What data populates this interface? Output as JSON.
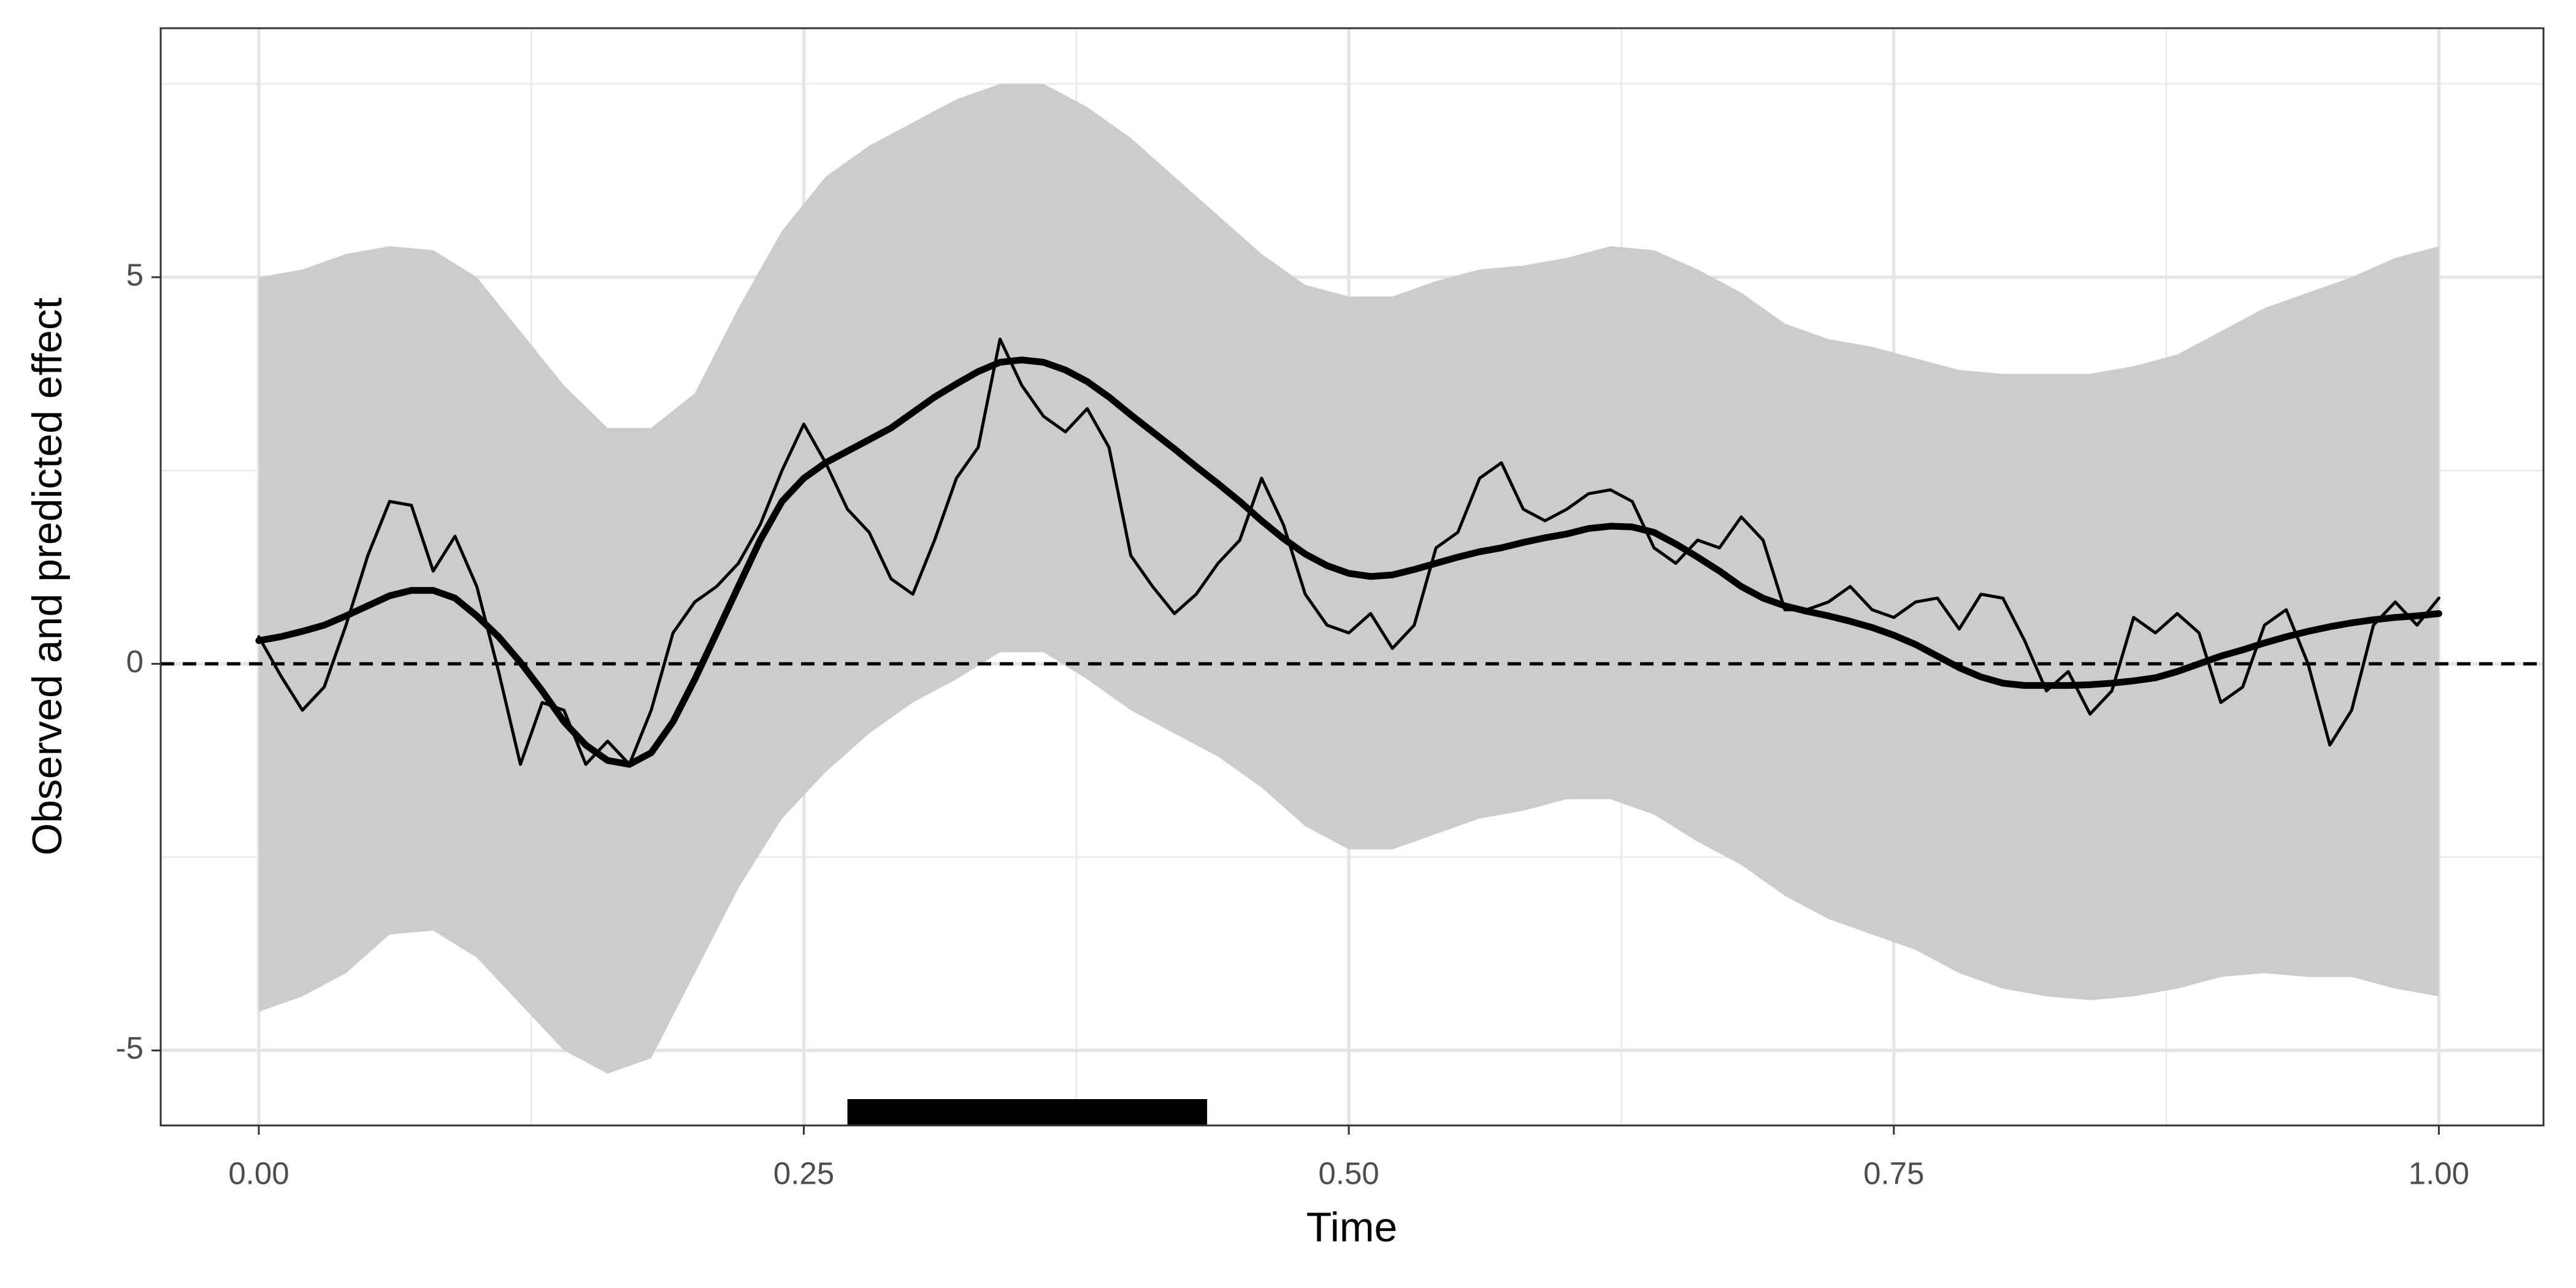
{
  "chart_data": {
    "type": "line",
    "xlabel": "Time",
    "ylabel": "Observed and predicted effect",
    "xlim": [
      -0.045,
      1.048
    ],
    "ylim": [
      -5.97,
      8.22
    ],
    "xticks": [
      {
        "value": 0,
        "label": "0.00"
      },
      {
        "value": 0.25,
        "label": "0.25"
      },
      {
        "value": 0.5,
        "label": "0.50"
      },
      {
        "value": 0.75,
        "label": "0.75"
      },
      {
        "value": 1,
        "label": "1.00"
      }
    ],
    "yticks": [
      -5,
      0,
      5
    ],
    "xminor": [
      0.125,
      0.375,
      0.625,
      0.875
    ],
    "yminor": [
      -2.5,
      2.5,
      7.5
    ],
    "grid": true,
    "reference_line": 0,
    "significant_region": [
      0.27,
      0.435
    ],
    "band": {
      "color": "#cccccc",
      "x": [
        0,
        0.02,
        0.04,
        0.06,
        0.08,
        0.1,
        0.12,
        0.14,
        0.16,
        0.18,
        0.2,
        0.22,
        0.24,
        0.26,
        0.28,
        0.3,
        0.32,
        0.34,
        0.36,
        0.38,
        0.4,
        0.42,
        0.44,
        0.46,
        0.48,
        0.5,
        0.52,
        0.54,
        0.56,
        0.58,
        0.6,
        0.62,
        0.64,
        0.66,
        0.68,
        0.7,
        0.72,
        0.74,
        0.76,
        0.78,
        0.8,
        0.82,
        0.84,
        0.86,
        0.88,
        0.9,
        0.92,
        0.94,
        0.96,
        0.98,
        1
      ],
      "upper": [
        5.0,
        5.1,
        5.3,
        5.4,
        5.35,
        5.0,
        4.3,
        3.6,
        3.05,
        3.05,
        3.5,
        4.6,
        5.6,
        6.3,
        6.7,
        7.0,
        7.3,
        7.5,
        7.5,
        7.2,
        6.8,
        6.3,
        5.8,
        5.3,
        4.9,
        4.75,
        4.75,
        4.95,
        5.1,
        5.15,
        5.25,
        5.4,
        5.35,
        5.1,
        4.8,
        4.4,
        4.2,
        4.1,
        3.95,
        3.8,
        3.75,
        3.75,
        3.75,
        3.85,
        4.0,
        4.3,
        4.6,
        4.8,
        5.0,
        5.25,
        5.4
      ],
      "lower": [
        -4.5,
        -4.3,
        -4.0,
        -3.5,
        -3.45,
        -3.8,
        -4.4,
        -5.0,
        -5.3,
        -5.1,
        -4.0,
        -2.9,
        -2.0,
        -1.4,
        -0.9,
        -0.5,
        -0.2,
        0.15,
        0.15,
        -0.2,
        -0.6,
        -0.9,
        -1.2,
        -1.6,
        -2.1,
        -2.4,
        -2.4,
        -2.2,
        -2.0,
        -1.9,
        -1.75,
        -1.75,
        -1.95,
        -2.3,
        -2.6,
        -3.0,
        -3.3,
        -3.5,
        -3.7,
        -4.0,
        -4.2,
        -4.3,
        -4.35,
        -4.3,
        -4.2,
        -4.05,
        -4.0,
        -4.05,
        -4.05,
        -4.2,
        -4.3
      ]
    },
    "x": [
      0,
      0.01,
      0.02,
      0.03,
      0.04,
      0.05,
      0.06,
      0.07,
      0.08,
      0.09,
      0.1,
      0.11,
      0.12,
      0.13,
      0.14,
      0.15,
      0.16,
      0.17,
      0.18,
      0.19,
      0.2,
      0.21,
      0.22,
      0.23,
      0.24,
      0.25,
      0.26,
      0.27,
      0.28,
      0.29,
      0.3,
      0.31,
      0.32,
      0.33,
      0.34,
      0.35,
      0.36,
      0.37,
      0.38,
      0.39,
      0.4,
      0.41,
      0.42,
      0.43,
      0.44,
      0.45,
      0.46,
      0.47,
      0.48,
      0.49,
      0.5,
      0.51,
      0.52,
      0.53,
      0.54,
      0.55,
      0.56,
      0.57,
      0.58,
      0.59,
      0.6,
      0.61,
      0.62,
      0.63,
      0.64,
      0.65,
      0.66,
      0.67,
      0.68,
      0.69,
      0.7,
      0.71,
      0.72,
      0.73,
      0.74,
      0.75,
      0.76,
      0.77,
      0.78,
      0.79,
      0.8,
      0.81,
      0.82,
      0.83,
      0.84,
      0.85,
      0.86,
      0.87,
      0.88,
      0.89,
      0.9,
      0.91,
      0.92,
      0.93,
      0.94,
      0.95,
      0.96,
      0.97,
      0.98,
      0.99,
      1
    ],
    "series": [
      {
        "color": "#000000",
        "width": 5,
        "values": [
          0.35,
          -0.15,
          -0.6,
          -0.3,
          0.5,
          1.4,
          2.1,
          2.05,
          1.2,
          1.65,
          1.0,
          -0.1,
          -1.3,
          -0.5,
          -0.6,
          -1.3,
          -1.0,
          -1.3,
          -0.6,
          0.4,
          0.8,
          1.0,
          1.3,
          1.8,
          2.5,
          3.1,
          2.6,
          2.0,
          1.7,
          1.1,
          0.9,
          1.6,
          2.4,
          2.8,
          4.2,
          3.6,
          3.2,
          3.0,
          3.3,
          2.8,
          1.4,
          1.0,
          0.65,
          0.9,
          1.3,
          1.6,
          2.4,
          1.8,
          0.9,
          0.5,
          0.4,
          0.65,
          0.2,
          0.5,
          1.5,
          1.7,
          2.4,
          2.6,
          2.0,
          1.85,
          2.0,
          2.2,
          2.25,
          2.1,
          1.5,
          1.3,
          1.6,
          1.5,
          1.9,
          1.6,
          0.7,
          0.7,
          0.8,
          1.0,
          0.7,
          0.6,
          0.8,
          0.85,
          0.45,
          0.9,
          0.85,
          0.3,
          -0.35,
          -0.1,
          -0.65,
          -0.35,
          0.6,
          0.4,
          0.65,
          0.4,
          -0.5,
          -0.3,
          0.5,
          0.7,
          0.0,
          -1.05,
          -0.6,
          0.5,
          0.8,
          0.5,
          0.85
        ]
      },
      {
        "color": "#000000",
        "width": 11,
        "values": [
          0.3,
          0.35,
          0.42,
          0.5,
          0.62,
          0.75,
          0.88,
          0.95,
          0.95,
          0.85,
          0.62,
          0.35,
          0.02,
          -0.35,
          -0.75,
          -1.05,
          -1.25,
          -1.3,
          -1.15,
          -0.75,
          -0.2,
          0.4,
          1.0,
          1.6,
          2.1,
          2.4,
          2.6,
          2.75,
          2.9,
          3.05,
          3.25,
          3.45,
          3.62,
          3.78,
          3.9,
          3.93,
          3.9,
          3.8,
          3.65,
          3.45,
          3.22,
          3.0,
          2.78,
          2.55,
          2.33,
          2.1,
          1.85,
          1.62,
          1.42,
          1.27,
          1.17,
          1.13,
          1.15,
          1.22,
          1.3,
          1.38,
          1.45,
          1.5,
          1.57,
          1.63,
          1.68,
          1.75,
          1.78,
          1.77,
          1.7,
          1.55,
          1.38,
          1.2,
          1.0,
          0.85,
          0.75,
          0.68,
          0.62,
          0.55,
          0.47,
          0.37,
          0.25,
          0.1,
          -0.05,
          -0.17,
          -0.25,
          -0.28,
          -0.28,
          -0.28,
          -0.27,
          -0.25,
          -0.22,
          -0.18,
          -0.1,
          0.0,
          0.1,
          0.18,
          0.27,
          0.35,
          0.42,
          0.48,
          0.53,
          0.57,
          0.6,
          0.62,
          0.65
        ]
      }
    ]
  }
}
